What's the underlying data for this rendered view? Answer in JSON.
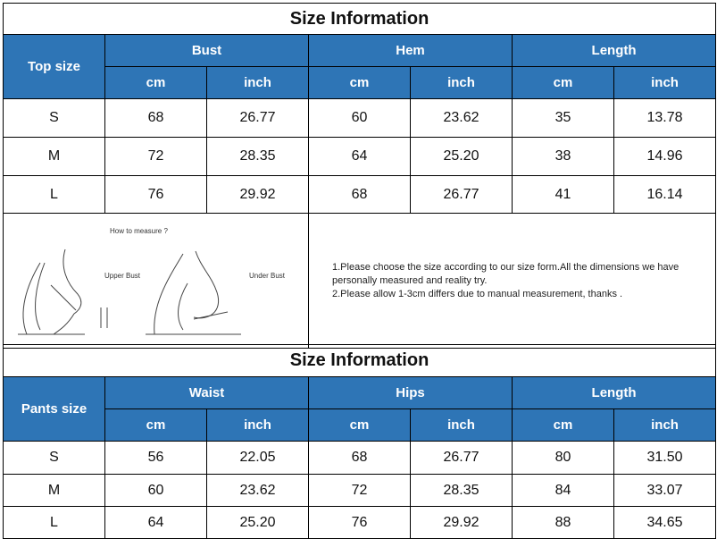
{
  "top": {
    "title": "Size Information",
    "size_label": "Top size",
    "groups": [
      "Bust",
      "Hem",
      "Length"
    ],
    "units": [
      "cm",
      "inch",
      "cm",
      "inch",
      "cm",
      "inch"
    ],
    "rows": [
      [
        "S",
        "68",
        "26.77",
        "60",
        "23.62",
        "35",
        "13.78"
      ],
      [
        "M",
        "72",
        "28.35",
        "64",
        "25.20",
        "38",
        "14.96"
      ],
      [
        "L",
        "76",
        "29.92",
        "68",
        "26.77",
        "41",
        "16.14"
      ]
    ]
  },
  "measure": {
    "heading": "How to measure ?",
    "upper": "Upper Bust",
    "under": "Under Bust",
    "notes": [
      "1.Please choose the size according to our size form.All the dimensions we have personally measured and reality try.",
      "2.Please allow 1-3cm differs due to manual measurement, thanks ."
    ]
  },
  "pants": {
    "title": "Size Information",
    "size_label": "Pants size",
    "groups": [
      "Waist",
      "Hips",
      "Length"
    ],
    "units": [
      "cm",
      "inch",
      "cm",
      "inch",
      "cm",
      "inch"
    ],
    "rows": [
      [
        "S",
        "56",
        "22.05",
        "68",
        "26.77",
        "80",
        "31.50"
      ],
      [
        "M",
        "60",
        "23.62",
        "72",
        "28.35",
        "84",
        "33.07"
      ],
      [
        "L",
        "64",
        "25.20",
        "76",
        "29.92",
        "88",
        "34.65"
      ]
    ]
  },
  "colors": {
    "header_blue": "#2e75b6"
  }
}
